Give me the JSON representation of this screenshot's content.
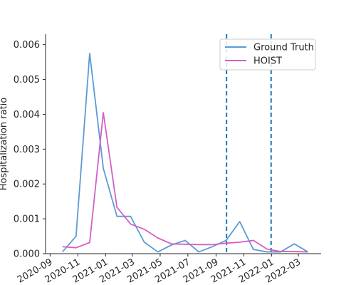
{
  "chart_data": {
    "type": "line",
    "title": "",
    "xlabel": "",
    "ylabel": "Hospitalization ratio",
    "xlim": [
      "2020-08-22",
      "2022-04-20"
    ],
    "ylim": [
      0,
      0.0063
    ],
    "grid": false,
    "legend_position": "top-right",
    "x_tick_labels": [
      "2020-09",
      "2020-11",
      "2021-01",
      "2021-03",
      "2021-05",
      "2021-07",
      "2021-09",
      "2021-11",
      "2022-01",
      "2022-03"
    ],
    "x_tick_dates": [
      "2020-09-01",
      "2020-11-01",
      "2021-01-01",
      "2021-03-01",
      "2021-05-01",
      "2021-07-01",
      "2021-09-01",
      "2021-11-01",
      "2022-01-01",
      "2022-03-01"
    ],
    "y_tick_values": [
      0,
      0.001,
      0.002,
      0.003,
      0.004,
      0.005,
      0.006
    ],
    "y_tick_labels": [
      "0.000",
      "0.001",
      "0.002",
      "0.003",
      "0.004",
      "0.005",
      "0.006"
    ],
    "vertical_lines": {
      "dates": [
        "2021-09-24",
        "2021-12-31"
      ],
      "color": "#1f77b4",
      "style": "dashed"
    },
    "series": [
      {
        "name": "Ground Truth",
        "color": "#5b9bd5",
        "x": [
          "2020-09-28",
          "2020-10-28",
          "2020-11-27",
          "2020-12-27",
          "2021-01-26",
          "2021-02-25",
          "2021-03-27",
          "2021-04-26",
          "2021-05-26",
          "2021-06-25",
          "2021-07-25",
          "2021-08-24",
          "2021-09-23",
          "2021-10-23",
          "2021-11-22",
          "2021-12-22",
          "2022-01-21",
          "2022-02-20",
          "2022-03-22"
        ],
        "values": [
          5e-05,
          0.0005,
          0.00575,
          0.00245,
          0.00107,
          0.00107,
          0.00033,
          5e-05,
          0.00025,
          0.00038,
          5e-05,
          0.0002,
          0.00038,
          0.00092,
          0.00012,
          5e-05,
          5e-05,
          0.00028,
          5e-05
        ]
      },
      {
        "name": "HOIST",
        "color": "#d45fc6",
        "x": [
          "2020-09-28",
          "2020-10-28",
          "2020-11-27",
          "2020-12-27",
          "2021-01-26",
          "2021-02-25",
          "2021-03-27",
          "2021-04-26",
          "2021-05-26",
          "2021-06-25",
          "2021-07-25",
          "2021-08-24",
          "2021-09-23",
          "2021-10-23",
          "2021-11-22",
          "2021-12-22",
          "2022-01-21",
          "2022-02-20",
          "2022-03-22"
        ],
        "values": [
          0.0002,
          0.00017,
          0.00032,
          0.00405,
          0.00133,
          0.00085,
          0.0007,
          0.00045,
          0.00028,
          0.00027,
          0.00026,
          0.00026,
          0.0003,
          0.00033,
          0.00038,
          0.00013,
          6e-05,
          6e-05,
          5e-05
        ]
      }
    ]
  }
}
